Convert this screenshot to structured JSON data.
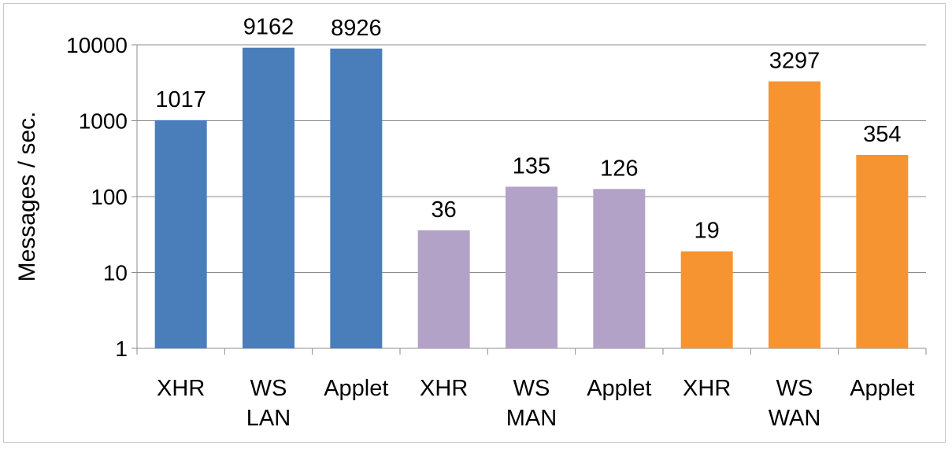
{
  "chart_data": {
    "type": "bar",
    "scale": "log",
    "ylabel": "Messages / sec.",
    "ylim": [
      1,
      10000
    ],
    "yticks": [
      "1",
      "10",
      "100",
      "1000",
      "10000"
    ],
    "ytick_values": [
      1,
      10,
      100,
      1000,
      10000
    ],
    "grid": true,
    "categories": [
      "XHR",
      "WS",
      "Applet",
      "XHR",
      "WS",
      "Applet",
      "XHR",
      "WS",
      "Applet"
    ],
    "groups": [
      {
        "label": "LAN",
        "color": "#4a7ebb"
      },
      {
        "label": "MAN",
        "color": "#b3a2c7"
      },
      {
        "label": "WAN",
        "color": "#f79432"
      }
    ],
    "values": [
      1017,
      9162,
      8926,
      36,
      135,
      126,
      19,
      3297,
      354
    ],
    "value_labels": [
      "1017",
      "9162",
      "8926",
      "36",
      "135",
      "126",
      "19",
      "3297",
      "354"
    ],
    "group_index": [
      0,
      0,
      0,
      1,
      1,
      1,
      2,
      2,
      2
    ]
  }
}
